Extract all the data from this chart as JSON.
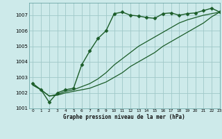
{
  "title": "Graphe pression niveau de la mer (hPa)",
  "background_color": "#cdeaea",
  "grid_color": "#9fc8c8",
  "line_color": "#1a5c28",
  "marker_color": "#1a5c28",
  "xlim": [
    -0.5,
    23
  ],
  "ylim": [
    1001,
    1007.8
  ],
  "yticks": [
    1001,
    1002,
    1003,
    1004,
    1005,
    1006,
    1007
  ],
  "xticks": [
    0,
    1,
    2,
    3,
    4,
    5,
    6,
    7,
    8,
    9,
    10,
    11,
    12,
    13,
    14,
    15,
    16,
    17,
    18,
    19,
    20,
    21,
    22,
    23
  ],
  "series": [
    {
      "x": [
        0,
        1,
        2,
        3,
        4,
        5,
        6,
        7,
        8,
        9,
        10,
        11,
        12,
        13,
        14,
        15,
        16,
        17,
        18,
        19,
        20,
        21,
        22,
        23
      ],
      "y": [
        1002.6,
        1002.2,
        1001.4,
        1002.0,
        1002.2,
        1002.3,
        1003.8,
        1004.7,
        1005.5,
        1006.0,
        1007.1,
        1007.2,
        1007.0,
        1006.95,
        1006.85,
        1006.8,
        1007.1,
        1007.15,
        1007.0,
        1007.1,
        1007.15,
        1007.3,
        1007.45,
        1007.2
      ],
      "marker": "D",
      "markersize": 2.5,
      "linewidth": 1.0
    },
    {
      "x": [
        0,
        1,
        2,
        3,
        4,
        5,
        6,
        7,
        8,
        9,
        10,
        11,
        12,
        13,
        14,
        15,
        16,
        17,
        18,
        19,
        20,
        21,
        22,
        23
      ],
      "y": [
        1002.5,
        1002.2,
        1001.8,
        1001.85,
        1002.0,
        1002.1,
        1002.2,
        1002.3,
        1002.5,
        1002.7,
        1003.0,
        1003.3,
        1003.7,
        1004.0,
        1004.3,
        1004.6,
        1005.0,
        1005.3,
        1005.6,
        1005.9,
        1006.2,
        1006.5,
        1006.9,
        1007.2
      ],
      "marker": null,
      "linewidth": 0.9
    },
    {
      "x": [
        0,
        1,
        2,
        3,
        4,
        5,
        6,
        7,
        8,
        9,
        10,
        11,
        12,
        13,
        14,
        15,
        16,
        17,
        18,
        19,
        20,
        21,
        22,
        23
      ],
      "y": [
        1002.5,
        1002.2,
        1001.8,
        1001.9,
        1002.1,
        1002.2,
        1002.4,
        1002.6,
        1002.9,
        1003.3,
        1003.8,
        1004.2,
        1004.6,
        1005.0,
        1005.3,
        1005.6,
        1005.9,
        1006.2,
        1006.5,
        1006.7,
        1006.85,
        1007.0,
        1007.1,
        1007.2
      ],
      "marker": null,
      "linewidth": 0.9
    }
  ]
}
